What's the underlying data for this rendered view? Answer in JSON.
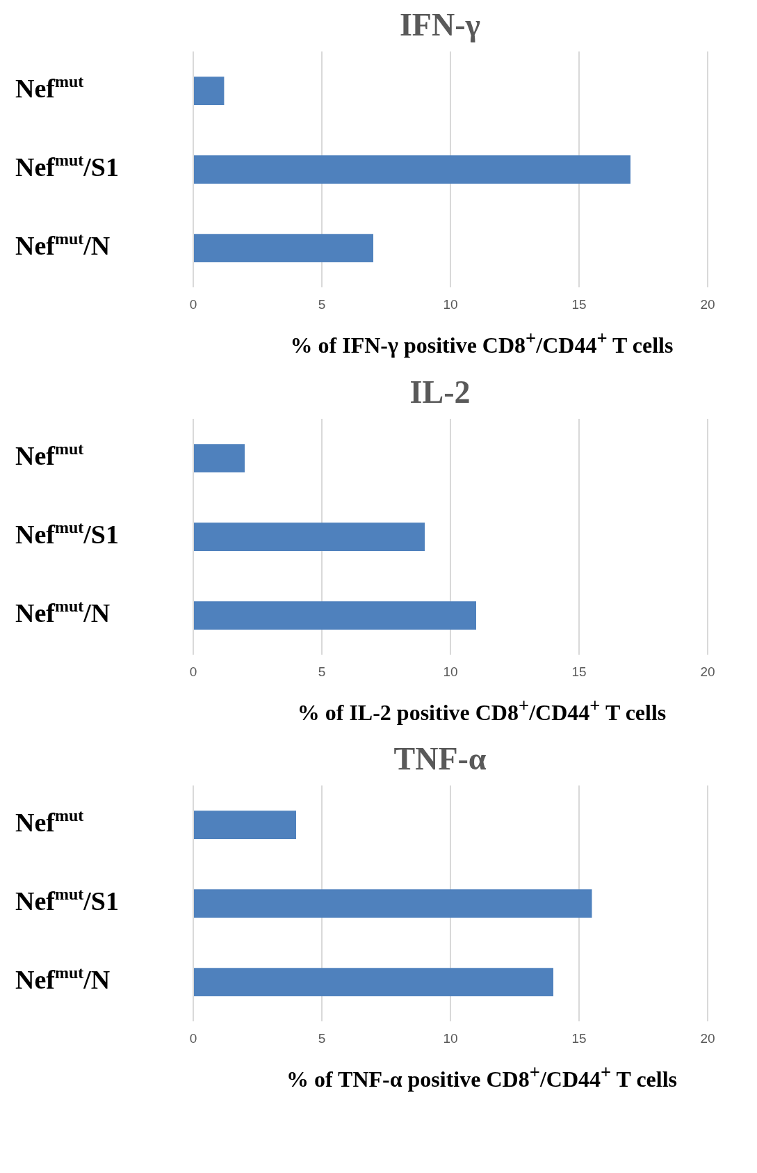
{
  "chart_data": [
    {
      "type": "bar",
      "orientation": "horizontal",
      "title": "IFN-γ",
      "xlabel": "% of IFN-γ positive CD8$^{+}$/CD44$^{+}$ T cells",
      "categories": [
        "Nef$^{mut}$",
        "Nef$^{mut}$/S1",
        "Nef$^{mut}$/N"
      ],
      "values": [
        1.2,
        17,
        7
      ],
      "color": "#4f81bd",
      "xlim": [
        0,
        20
      ],
      "xticks": [
        0,
        5,
        10,
        15,
        20
      ],
      "grid": "x"
    },
    {
      "type": "bar",
      "orientation": "horizontal",
      "title": "IL-2",
      "xlabel": "% of IL-2 positive CD8$^{+}$/CD44$^{+}$ T cells",
      "categories": [
        "Nef$^{mut}$",
        "Nef$^{mut}$/S1",
        "Nef$^{mut}$/N"
      ],
      "values": [
        2,
        9,
        11
      ],
      "color": "#4f81bd",
      "xlim": [
        0,
        20
      ],
      "xticks": [
        0,
        5,
        10,
        15,
        20
      ],
      "grid": "x"
    },
    {
      "type": "bar",
      "orientation": "horizontal",
      "title": "TNF-α",
      "xlabel": "% of TNF-α positive CD8$^{+}$/CD44$^{+}$ T cells",
      "categories": [
        "Nef$^{mut}$",
        "Nef$^{mut}$/S1",
        "Nef$^{mut}$/N"
      ],
      "values": [
        4,
        15.5,
        14
      ],
      "color": "#4f81bd",
      "xlim": [
        0,
        20
      ],
      "xticks": [
        0,
        5,
        10,
        15,
        20
      ],
      "grid": "x"
    }
  ]
}
